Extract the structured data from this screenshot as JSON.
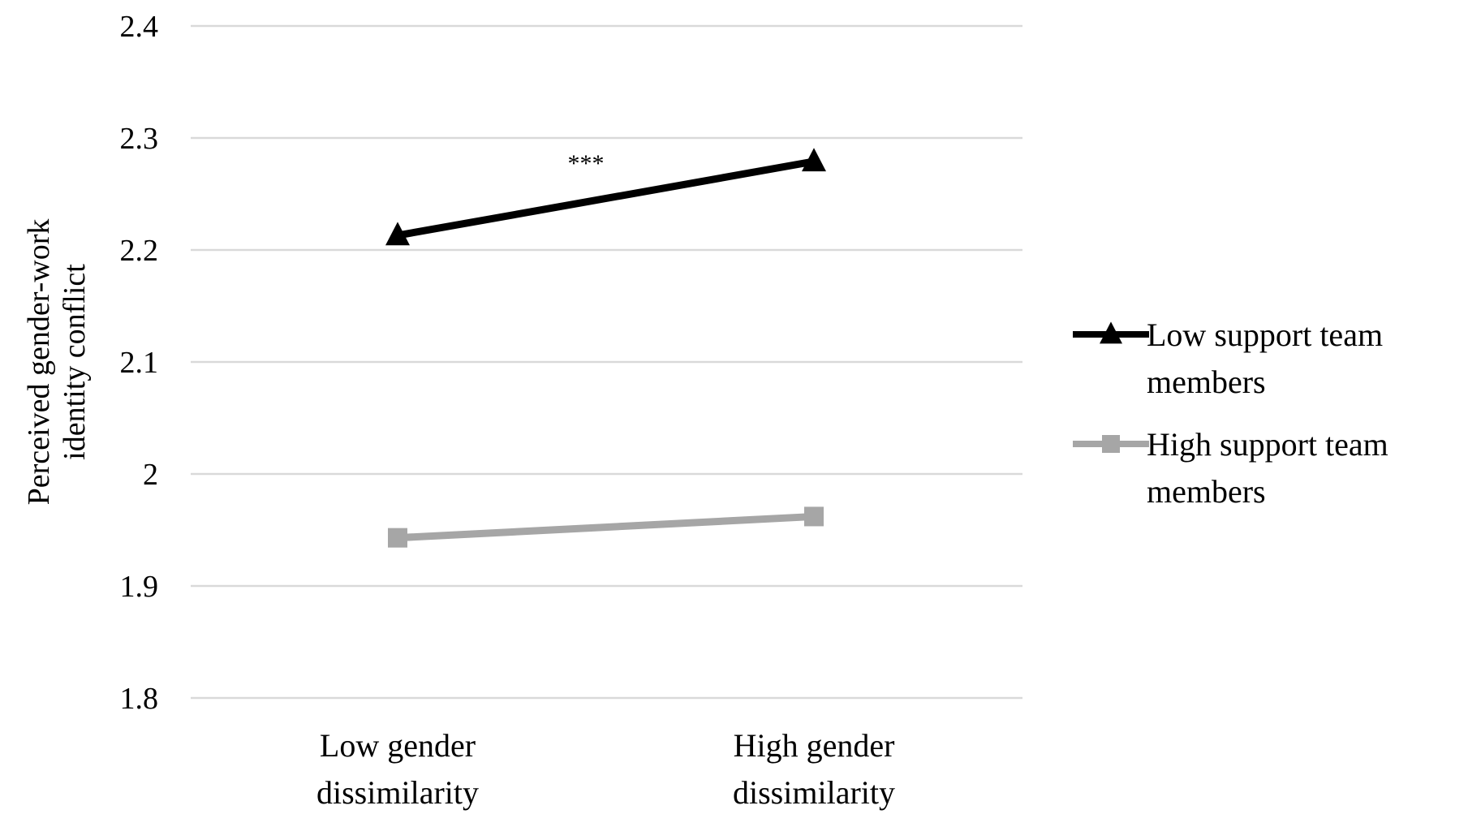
{
  "chart_data": {
    "type": "line",
    "title": "",
    "ylabel": "Perceived gender-work identity conflict",
    "xlabel": "",
    "categories": [
      "Low gender dissimilarity",
      "High gender dissimilarity"
    ],
    "ylim": [
      1.8,
      2.4
    ],
    "yticks": [
      "2.4",
      "2.3",
      "2.2",
      "2.1",
      "2",
      "1.9",
      "1.8"
    ],
    "grid": true,
    "legend_position": "right",
    "annotation": "***",
    "series": [
      {
        "name": "Low support team members",
        "values": [
          2.213,
          2.279
        ],
        "color": "#000000",
        "marker": "triangle"
      },
      {
        "name": "High support team members",
        "values": [
          1.943,
          1.962
        ],
        "color": "#a6a6a6",
        "marker": "square"
      }
    ]
  }
}
